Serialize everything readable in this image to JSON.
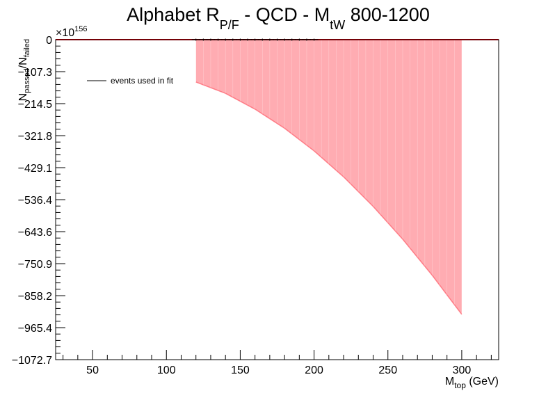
{
  "chart_data": {
    "type": "area",
    "title": {
      "main": "Alphabet R",
      "main_sub": "P/F",
      "mid": " - QCD - M",
      "mid_sub": "tW",
      "tail": " 800-1200"
    },
    "xlabel": {
      "main": "M",
      "sub": "top",
      "tail": " (GeV)"
    },
    "ylabel": {
      "n1": "N",
      "sub1": "passed",
      "slash": "/",
      "n2": "N",
      "sub2": "failed"
    },
    "y_multiplier": "×10",
    "y_multiplier_exp": "156",
    "xlim": [
      25,
      325
    ],
    "ylim": [
      -1072.7,
      0
    ],
    "x_ticks": [
      "50",
      "100",
      "150",
      "200",
      "250",
      "300"
    ],
    "x_tick_values": [
      50,
      100,
      150,
      200,
      250,
      300
    ],
    "y_ticks": [
      "0",
      "−107.3",
      "−214.5",
      "−321.8",
      "−429.1",
      "−536.4",
      "−643.6",
      "−750.9",
      "−858.2",
      "−965.4",
      "−1072.7"
    ],
    "y_tick_values": [
      0,
      -107.3,
      -214.5,
      -321.8,
      -429.1,
      -536.4,
      -643.6,
      -750.9,
      -858.2,
      -965.4,
      -1072.7
    ],
    "legend": {
      "label": "events used in fit",
      "placement": "top-left"
    },
    "band": {
      "name": "",
      "color": "#ff5a66",
      "x": [
        120,
        140,
        160,
        180,
        200,
        220,
        240,
        260,
        280,
        300
      ],
      "lower": [
        -142,
        -180,
        -233,
        -297,
        -373,
        -460,
        -559,
        -669,
        -790,
        -921
      ],
      "upper": [
        0,
        0,
        0,
        0,
        0,
        0,
        0,
        0,
        0,
        0
      ]
    },
    "zero_line": {
      "color": "#e8000b",
      "x_range": [
        25,
        325
      ],
      "y": 0
    },
    "points": {
      "name": "events used in fit",
      "color": "#000000",
      "x": [
        120,
        125,
        130,
        135,
        140,
        145,
        150,
        155,
        160,
        165,
        170,
        175,
        180,
        185,
        190,
        195,
        200
      ],
      "y": [
        0,
        0,
        0,
        0,
        0,
        0,
        0,
        0,
        0,
        0,
        0,
        0,
        0,
        0,
        0,
        0,
        0
      ]
    },
    "grid": false
  }
}
